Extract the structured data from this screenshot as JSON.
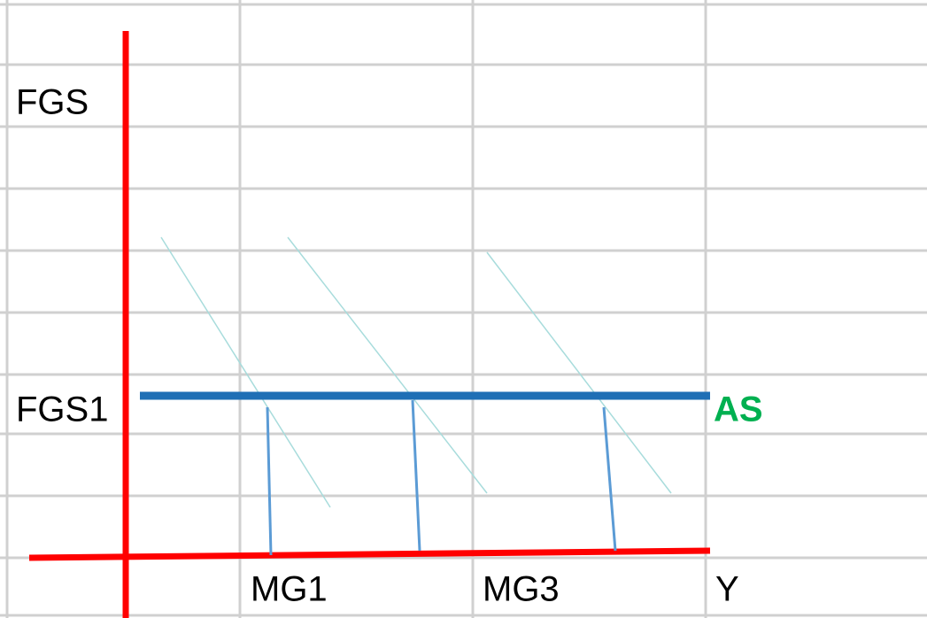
{
  "labels": {
    "y_axis": "FGS",
    "y_level": "FGS1",
    "curve": "AS",
    "x_marks": [
      "MG1",
      "MG3"
    ],
    "x_axis": "Y"
  }
}
